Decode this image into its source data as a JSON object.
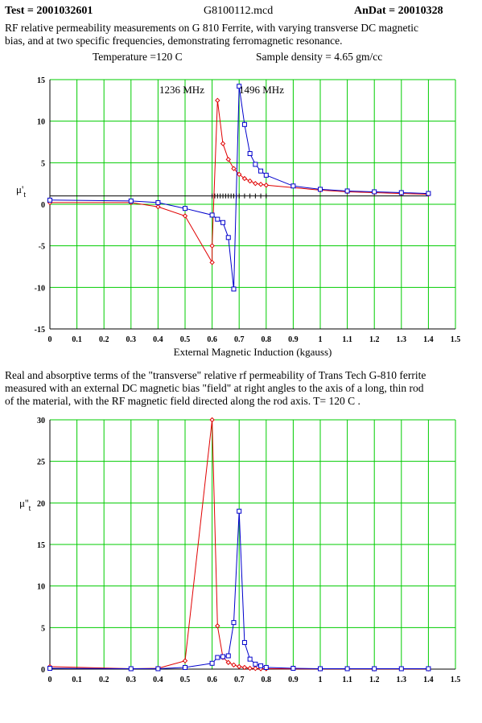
{
  "header": {
    "test": "Test  = 2001032601",
    "file": "G8100112.mcd",
    "andat": "AnDat = 20010328",
    "desc_line1": "RF relative permeability measurements on  G 810 Ferrite, with varying transverse DC magnetic",
    "desc_line2": " bias, and at two specific frequencies, demonstrating ferromagnetic resonance.",
    "temperature": "Temperature =120 C",
    "density": "Sample density = 4.65 gm/cc"
  },
  "caption": {
    "line1": "Real and absorptive terms of the \"transverse\" relative rf permeability of Trans Tech G-810 ferrite",
    "line2": "measured with an external  DC magnetic bias \"field\" at right angles to the axis of a long, thin rod",
    "line3": "of the material, with the RF magnetic field directed along the rod axis.  T= 120 C ."
  },
  "colors": {
    "grid": "#00cc00",
    "red_series": "#e00000",
    "blue_series": "#0000cc",
    "baseline": "#000000"
  },
  "chart_data": [
    {
      "type": "line",
      "xlabel": "External  Magnetic Induction (kgauss)",
      "ylabel": "μ't",
      "xlim": [
        0,
        1.5
      ],
      "ylim": [
        -15,
        15
      ],
      "xticks": [
        "0",
        "0.1",
        "0.2",
        "0.3",
        "0.4",
        "0.5",
        "0.6",
        "0.7",
        "0.8",
        "0.9",
        "1",
        "1.1",
        "1.2",
        "1.3",
        "1.4",
        "1.5"
      ],
      "yticks": [
        "15",
        "10",
        "5",
        "0",
        "-5",
        "-10",
        "-15"
      ],
      "annotations": [
        "1236 MHz",
        "1496 MHz"
      ],
      "reference_line": {
        "y": 1.0,
        "marks_x": [
          0.6,
          0.61,
          0.62,
          0.63,
          0.64,
          0.65,
          0.66,
          0.67,
          0.68,
          0.69,
          0.7,
          0.72,
          0.74,
          0.76,
          0.78,
          0.8
        ]
      },
      "series": [
        {
          "marker": "diamond",
          "color": "red",
          "x": [
            0,
            0.3,
            0.4,
            0.5,
            0.6,
            0.6,
            0.62,
            0.64,
            0.66,
            0.68,
            0.7,
            0.72,
            0.74,
            0.76,
            0.78,
            0.8,
            1.0,
            1.1,
            1.2,
            1.3,
            1.4
          ],
          "y": [
            0.2,
            0.2,
            -0.3,
            -1.4,
            -7.0,
            -5.0,
            12.5,
            7.3,
            5.4,
            4.3,
            3.6,
            3.1,
            2.8,
            2.5,
            2.4,
            2.3,
            1.7,
            1.5,
            1.4,
            1.3,
            1.2
          ]
        },
        {
          "marker": "square",
          "color": "blue",
          "x": [
            0,
            0.3,
            0.4,
            0.5,
            0.6,
            0.62,
            0.64,
            0.66,
            0.68,
            0.7,
            0.72,
            0.74,
            0.76,
            0.78,
            0.8,
            0.9,
            1.0,
            1.1,
            1.2,
            1.3,
            1.4
          ],
          "y": [
            0.5,
            0.4,
            0.2,
            -0.5,
            -1.3,
            -1.8,
            -2.2,
            -4.0,
            -10.2,
            14.2,
            9.6,
            6.1,
            4.8,
            4.0,
            3.5,
            2.2,
            1.8,
            1.6,
            1.5,
            1.4,
            1.3
          ]
        }
      ]
    },
    {
      "type": "line",
      "xlabel": "",
      "ylabel": "μ''t",
      "xlim": [
        0,
        1.5
      ],
      "ylim": [
        0,
        30
      ],
      "xticks": [
        "0",
        "0.1",
        "0.2",
        "0.3",
        "0.4",
        "0.5",
        "0.6",
        "0.7",
        "0.8",
        "0.9",
        "1",
        "1.1",
        "1.2",
        "1.3",
        "1.4",
        "1.5"
      ],
      "yticks": [
        "30",
        "25",
        "20",
        "15",
        "10",
        "5",
        "0"
      ],
      "series": [
        {
          "marker": "diamond",
          "color": "red",
          "x": [
            0,
            0.3,
            0.4,
            0.5,
            0.6,
            0.62,
            0.64,
            0.66,
            0.68,
            0.7,
            0.72,
            0.74,
            0.76,
            0.78,
            0.8,
            1.0,
            1.2,
            1.4
          ],
          "y": [
            0.3,
            0.05,
            0.1,
            1.0,
            30.0,
            5.2,
            1.4,
            0.8,
            0.5,
            0.3,
            0.2,
            0.1,
            0.08,
            0.05,
            0.05,
            0.02,
            0.02,
            0.02
          ]
        },
        {
          "marker": "square",
          "color": "blue",
          "x": [
            0,
            0.3,
            0.4,
            0.5,
            0.6,
            0.62,
            0.64,
            0.66,
            0.68,
            0.7,
            0.72,
            0.74,
            0.76,
            0.78,
            0.8,
            0.9,
            1.0,
            1.1,
            1.2,
            1.3,
            1.4
          ],
          "y": [
            0.1,
            0.05,
            0.05,
            0.2,
            0.7,
            1.4,
            1.5,
            1.6,
            5.6,
            19.0,
            3.2,
            1.2,
            0.6,
            0.4,
            0.2,
            0.1,
            0.05,
            0.05,
            0.05,
            0.05,
            0.05
          ]
        }
      ]
    }
  ]
}
